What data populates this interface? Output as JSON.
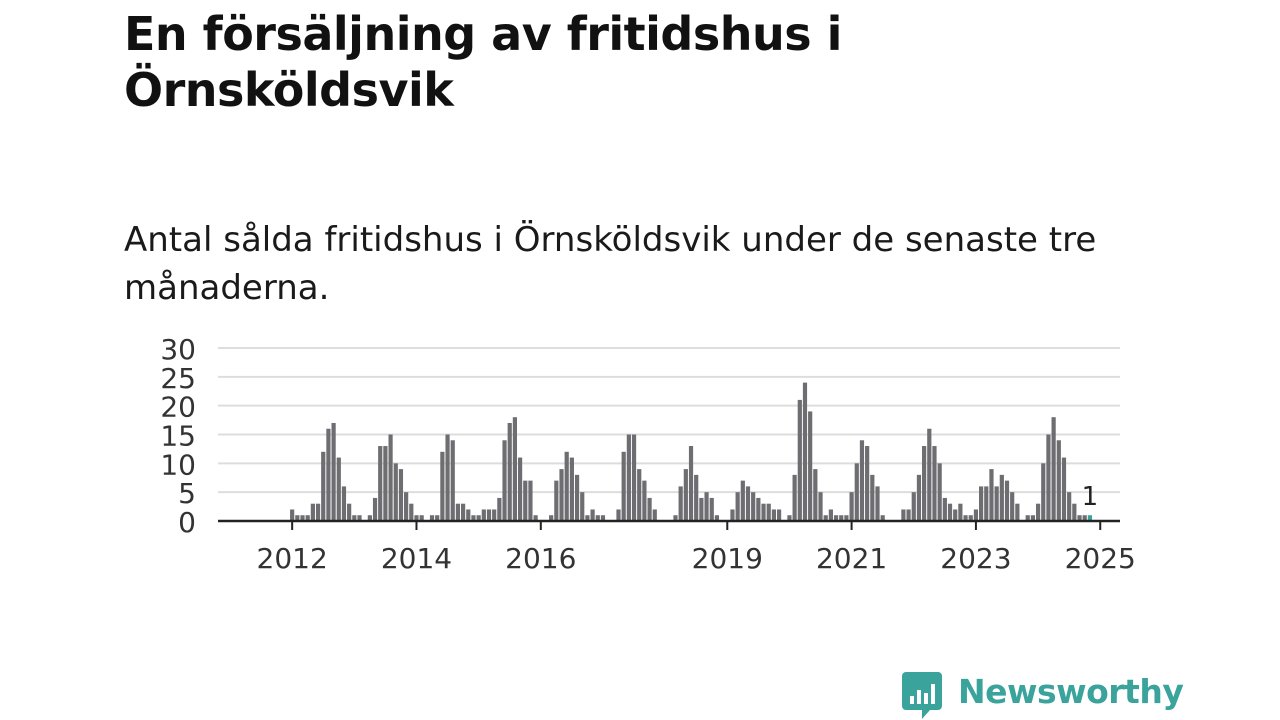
{
  "title": "En försäljning av fritidshus i Örnsköldsvik",
  "subtitle": "Antal sålda fritidshus i Örnsköldsvik under de senaste tre månaderna.",
  "brand": {
    "name": "Newsworthy",
    "color": "#3aa39b",
    "icon": "bar-chart-speech-bubble-icon"
  },
  "chart_data": {
    "type": "bar",
    "ylim": [
      0,
      30
    ],
    "yticks": [
      0,
      5,
      10,
      15,
      20,
      25,
      30
    ],
    "xtick_labels": [
      "2012",
      "2014",
      "2016",
      "2019",
      "2021",
      "2023",
      "2025"
    ],
    "grid": true,
    "bar_color": "#6e6d72",
    "highlight_color": "#3aa39b",
    "highlight_label": "1",
    "start_month": "2011-01",
    "values": [
      0,
      0,
      0,
      0,
      0,
      0,
      0,
      0,
      0,
      0,
      0,
      0,
      2,
      1,
      1,
      1,
      3,
      3,
      12,
      16,
      17,
      11,
      6,
      3,
      1,
      1,
      0,
      1,
      4,
      13,
      13,
      15,
      10,
      9,
      5,
      3,
      1,
      1,
      0,
      1,
      1,
      12,
      15,
      14,
      3,
      3,
      2,
      1,
      1,
      2,
      2,
      2,
      4,
      14,
      17,
      18,
      11,
      7,
      7,
      1,
      0,
      0,
      1,
      7,
      9,
      12,
      11,
      8,
      5,
      1,
      2,
      1,
      1,
      0,
      0,
      2,
      12,
      15,
      15,
      9,
      7,
      4,
      2,
      0,
      0,
      0,
      1,
      6,
      9,
      13,
      8,
      4,
      5,
      4,
      1,
      0,
      0,
      2,
      5,
      7,
      6,
      5,
      4,
      3,
      3,
      2,
      2,
      0,
      1,
      8,
      21,
      24,
      19,
      9,
      5,
      1,
      2,
      1,
      1,
      1,
      5,
      10,
      14,
      13,
      8,
      6,
      1,
      0,
      0,
      0,
      2,
      2,
      5,
      8,
      13,
      16,
      13,
      10,
      4,
      3,
      2,
      3,
      1,
      1,
      2,
      6,
      6,
      9,
      6,
      8,
      7,
      5,
      3,
      0,
      1,
      1,
      3,
      10,
      15,
      18,
      14,
      11,
      5,
      3,
      1,
      1,
      1
    ]
  }
}
